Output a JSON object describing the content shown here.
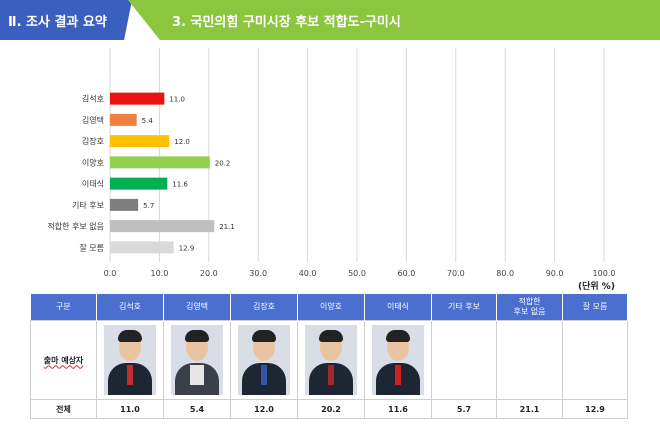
{
  "header": {
    "section_label": "Ⅱ. 조사 결과 요약",
    "title": "3. 국민의힘 구미시장 후보 적합도-구미시"
  },
  "colors": {
    "section_bg": "#3b5fbf",
    "title_bg": "#8cc63f",
    "table_header_bg": "#4a6fcf"
  },
  "chart_data": {
    "type": "bar",
    "orientation": "horizontal",
    "categories": [
      "김석호",
      "김영택",
      "김장호",
      "이양호",
      "이태식",
      "기타 후보",
      "적합한 후보 없음",
      "잘 모름"
    ],
    "values": [
      11.0,
      5.4,
      12.0,
      20.2,
      11.6,
      5.7,
      21.1,
      12.9
    ],
    "value_labels": [
      "11.0",
      "5.4",
      "12.0",
      "20.2",
      "11.6",
      "5.7",
      "21.1",
      "12.9"
    ],
    "bar_colors": [
      "#ee1111",
      "#f08040",
      "#ffc000",
      "#92d050",
      "#00b050",
      "#7f7f7f",
      "#bfbfbf",
      "#d9d9d9"
    ],
    "xlim": [
      0,
      100
    ],
    "xticks": [
      "0.0",
      "10.0",
      "20.0",
      "30.0",
      "40.0",
      "50.0",
      "60.0",
      "70.0",
      "80.0",
      "90.0",
      "100.0"
    ],
    "grid": true,
    "unit_label": "(단위 %)"
  },
  "table": {
    "columns": [
      "구분",
      "김석호",
      "김영택",
      "김장호",
      "이양호",
      "이태식",
      "기타 후보",
      "적합한\n후보 없음",
      "잘 모름"
    ],
    "photo_row_label": "출마 예상자",
    "total_row_label": "전체",
    "total_values": [
      "11.0",
      "5.4",
      "12.0",
      "20.2",
      "11.6",
      "5.7",
      "21.1",
      "12.9"
    ]
  }
}
